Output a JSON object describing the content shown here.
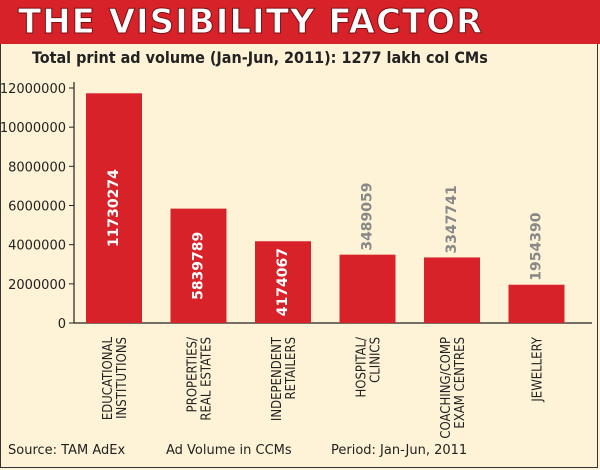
{
  "banner": {
    "title": "THE VISIBILITY FACTOR"
  },
  "subtitle": "Total print ad volume (Jan-Jun, 2011): 1277 lakh col CMs",
  "footer": {
    "source": "Source: TAM AdEx",
    "unit": "Ad Volume in CCMs",
    "period": "Period: Jan-Jun, 2011"
  },
  "colors": {
    "bar": "#d8222a",
    "banner": "#d8222a",
    "outside_label": "#888888",
    "background": "#fef3d6"
  },
  "chart_data": {
    "type": "bar",
    "categories": [
      [
        "EDUCATIONAL",
        "INSTITUTIONS"
      ],
      [
        "PROPERTIES/",
        "REAL ESTATES"
      ],
      [
        "INDEPENDENT",
        "RETAILERS"
      ],
      [
        "HOSPITAL/",
        "CLINICS"
      ],
      [
        "COACHING/COMP",
        "EXAM CENTRES"
      ],
      [
        "JEWELLERY"
      ]
    ],
    "values": [
      11730274,
      5839789,
      4174067,
      3489059,
      3347741,
      1954390
    ],
    "value_labels": [
      "11730274",
      "5839789",
      "4174067",
      "3489059",
      "3347741",
      "1954390"
    ],
    "y_ticks": [
      0,
      2000000,
      4000000,
      6000000,
      8000000,
      10000000,
      12000000
    ],
    "y_tick_labels": [
      "0",
      "2000000",
      "4000000",
      "6000000",
      "8000000",
      "10000000",
      "12000000"
    ],
    "ylim": [
      0,
      12000000
    ],
    "grid": false,
    "legend": "none"
  }
}
